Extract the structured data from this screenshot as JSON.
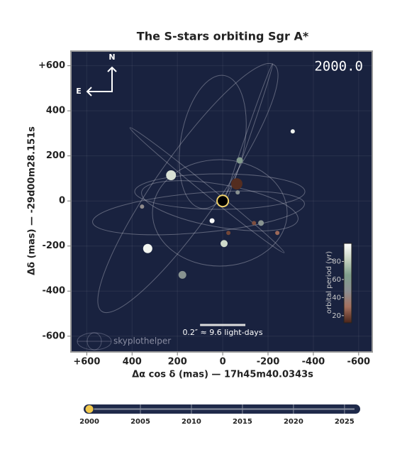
{
  "chart_data": {
    "type": "scatter",
    "title": "The S-stars orbiting Sgr A*",
    "epoch_label": "2000.0",
    "xlabel": "Δα cos δ (mas)  —  17h45m40.0343s",
    "ylabel": "Δδ (mas)  —  -29d00m28.151s",
    "compass": {
      "north": "N",
      "east": "E"
    },
    "x": [
      -309,
      -75,
      228,
      -62,
      -66,
      356,
      47,
      -138,
      -169,
      -241,
      -25,
      -6,
      331,
      178
    ],
    "y": [
      309,
      180,
      114,
      76,
      38,
      -25,
      -88,
      -98,
      -98,
      -142,
      -142,
      -189,
      -211,
      -328
    ],
    "sizes": [
      3,
      4.5,
      7,
      8,
      3,
      3,
      3.5,
      3,
      4,
      3,
      3,
      5,
      6.5,
      5.5
    ],
    "period": [
      95,
      60,
      88,
      14,
      50,
      45,
      98,
      22,
      52,
      28,
      20,
      85,
      96,
      52
    ],
    "xlim": [
      670,
      -660
    ],
    "ylim": [
      -670,
      665
    ],
    "xticks": [
      {
        "value": 600,
        "label": "+600"
      },
      400,
      200,
      0,
      -200,
      -400,
      -600
    ],
    "yticks": [
      {
        "value": 600,
        "label": "+600"
      },
      400,
      200,
      0,
      -200,
      -400,
      -600
    ],
    "grid": true,
    "background": "#19223f",
    "colorbar": {
      "label": "orbital period (yr)",
      "clim": [
        12,
        100
      ],
      "ticks": [
        20,
        40,
        60,
        80
      ],
      "colormap": [
        "#4a2418",
        "#a4705f",
        "#8c8f92",
        "#7f9f8c",
        "#c7d3c2",
        "#ffffff"
      ]
    },
    "scale_bar": {
      "length": 200,
      "label": "0.2″  ≈  9.6 light-days"
    },
    "watermark": "skyplothelper",
    "timeline": {
      "xlim": [
        1999.44,
        2026.4
      ],
      "xticks": [
        2000,
        2005,
        2010,
        2015,
        2020,
        2025
      ],
      "value": 2000
    }
  }
}
